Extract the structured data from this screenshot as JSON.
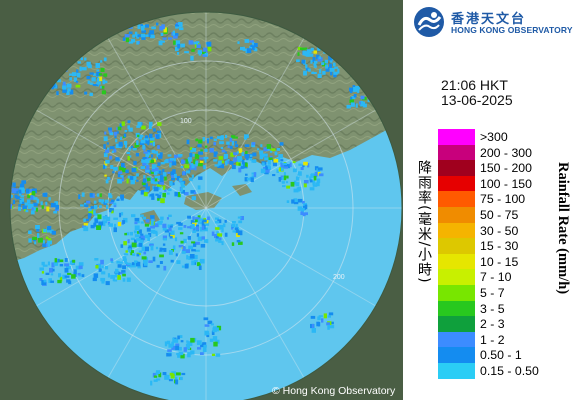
{
  "header": {
    "logo_cn": "香港天文台",
    "logo_en": "HONG KONG OBSERVATORY",
    "logo_icon": "hko-logo-icon"
  },
  "timestamp": {
    "time": "21:06 HKT",
    "date": "13-06-2025"
  },
  "map": {
    "range_ring_labels": [
      "100",
      "200"
    ],
    "copyright": "© Hong Kong Observatory",
    "colors": {
      "sea": "#62c8f0",
      "land": "#7d8f6a",
      "outside": "#556b4e"
    }
  },
  "legend": {
    "title_cn": "降雨率(毫米/小時)",
    "title_en": "Rainfall Rate (mm/h)",
    "items": [
      {
        "label": ">300",
        "color": "#ff00ff"
      },
      {
        "label": "200 - 300",
        "color": "#c8007c"
      },
      {
        "label": "150 - 200",
        "color": "#a0001e"
      },
      {
        "label": "100 - 150",
        "color": "#e60000"
      },
      {
        "label": "75 - 100",
        "color": "#ff5a00"
      },
      {
        "label": "50 - 75",
        "color": "#f08c00"
      },
      {
        "label": "30 - 50",
        "color": "#f5b400"
      },
      {
        "label": "15 - 30",
        "color": "#ddc800"
      },
      {
        "label": "10 - 15",
        "color": "#e6e600"
      },
      {
        "label": "7 - 10",
        "color": "#c8f000"
      },
      {
        "label": "5 - 7",
        "color": "#78e600"
      },
      {
        "label": "3 - 5",
        "color": "#28c81e"
      },
      {
        "label": "2 - 3",
        "color": "#0fa03c"
      },
      {
        "label": "1 - 2",
        "color": "#3c8cff"
      },
      {
        "label": "0.50 - 1",
        "color": "#148cf0"
      },
      {
        "label": "0.15 - 0.50",
        "color": "#2bcdf5"
      }
    ]
  }
}
